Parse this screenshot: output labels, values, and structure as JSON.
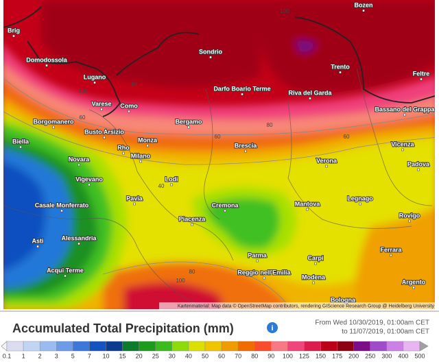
{
  "map": {
    "cities": [
      "Bozen",
      "Brig",
      "Domodossola",
      "Sondrio",
      "Trento",
      "Feltre",
      "Lugano",
      "Darfo Boario Terme",
      "Riva del Garda",
      "Bassano del Grappa",
      "Varese",
      "Como",
      "Borgomanero",
      "Bergamo",
      "Busto Arsizio",
      "Monza",
      "Brescia",
      "Vicenza",
      "Biella",
      "Rho",
      "Milano",
      "Novara",
      "Verona",
      "Padova",
      "Lodi",
      "Vigevano",
      "Cremona",
      "Mantova",
      "Legnago",
      "Casale Monferrato",
      "Pavia",
      "Piacenza",
      "Rovigo",
      "Asti",
      "Alessandria",
      "Parma",
      "Ferrara",
      "Carpi",
      "Acqui Terme",
      "Reggio nell'Emilia",
      "Modena",
      "Argento",
      "Bologna"
    ],
    "contour_labels": [
      "100",
      "100",
      "80",
      "60",
      "60",
      "80",
      "60",
      "40",
      "80",
      "100"
    ],
    "attribution": "Kartenmaterial: Map data © OpenStreetMap contributors, rendering GIScience Research Group @ Heidelberg University"
  },
  "legend": {
    "title": "Accumulated Total Precipitation (mm)",
    "info": "i",
    "from": "From Wed 10/30/2019, 01:00am CET",
    "to": "to 11/07/2019, 01:00am CET",
    "ticks": [
      "0.1",
      "1",
      "2",
      "3",
      "5",
      "7",
      "10",
      "15",
      "20",
      "25",
      "30",
      "40",
      "50",
      "60",
      "70",
      "80",
      "90",
      "100",
      "125",
      "150",
      "175",
      "200",
      "250",
      "300",
      "400",
      "500"
    ],
    "colors": [
      "#dcdcf0",
      "#c0d4f4",
      "#98bcf0",
      "#6c9ce8",
      "#3c78dc",
      "#1454c0",
      "#0c3c90",
      "#0c7c2c",
      "#1c9c1c",
      "#3cbc1c",
      "#8cdc0c",
      "#dce000",
      "#f0c400",
      "#f09c00",
      "#f06c00",
      "#f84c2c",
      "#f87884",
      "#f0447c",
      "#dc1c4c",
      "#bc0018",
      "#8c0010",
      "#7c0c88",
      "#a04cc8",
      "#cc80e4",
      "#e8b4f4"
    ]
  }
}
